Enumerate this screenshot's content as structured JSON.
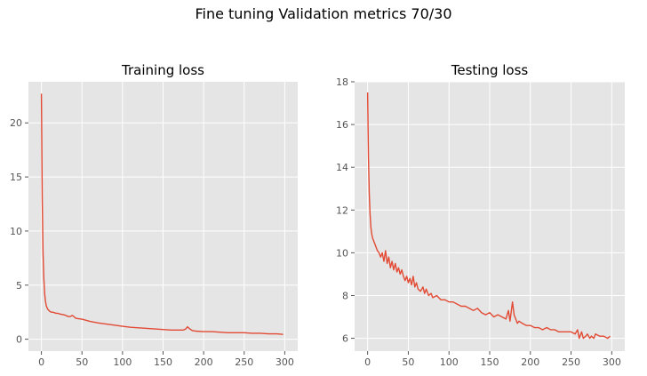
{
  "figure": {
    "title": "Fine tuning Validation metrics 70/30"
  },
  "chart_data": [
    {
      "type": "line",
      "title": "Training loss",
      "xlabel": "",
      "ylabel": "",
      "xlim": [
        -16,
        316
      ],
      "ylim": [
        -1.1,
        23.8
      ],
      "xticks": [
        0,
        50,
        100,
        150,
        200,
        250,
        300
      ],
      "yticks": [
        0,
        5,
        10,
        15,
        20
      ],
      "grid": true,
      "line_color": "#E24A33",
      "series": [
        {
          "x": [
            0,
            1,
            2,
            3,
            4,
            5,
            6,
            7,
            8,
            10,
            12,
            14,
            16,
            18,
            20,
            22,
            25,
            28,
            30,
            33,
            36,
            38,
            40,
            42,
            45,
            50,
            55,
            60,
            70,
            80,
            90,
            100,
            110,
            120,
            130,
            140,
            150,
            160,
            170,
            175,
            178,
            180,
            183,
            186,
            190,
            200,
            210,
            220,
            230,
            240,
            250,
            260,
            270,
            280,
            290,
            298
          ],
          "y": [
            22.7,
            13.0,
            8.0,
            5.6,
            4.2,
            3.5,
            3.1,
            2.9,
            2.75,
            2.6,
            2.5,
            2.5,
            2.45,
            2.4,
            2.4,
            2.35,
            2.3,
            2.25,
            2.2,
            2.1,
            2.1,
            2.2,
            2.1,
            1.95,
            1.9,
            1.85,
            1.75,
            1.65,
            1.5,
            1.4,
            1.3,
            1.2,
            1.1,
            1.05,
            1.0,
            0.95,
            0.9,
            0.85,
            0.85,
            0.85,
            0.95,
            1.15,
            0.95,
            0.8,
            0.75,
            0.7,
            0.7,
            0.65,
            0.6,
            0.6,
            0.6,
            0.55,
            0.55,
            0.5,
            0.5,
            0.45
          ]
        }
      ]
    },
    {
      "type": "line",
      "title": "Testing loss",
      "xlabel": "",
      "ylabel": "",
      "xlim": [
        -16,
        316
      ],
      "ylim": [
        5.4,
        18.0
      ],
      "xticks": [
        0,
        50,
        100,
        150,
        200,
        250,
        300
      ],
      "yticks": [
        6,
        8,
        10,
        12,
        14,
        16,
        18
      ],
      "grid": true,
      "line_color": "#E24A33",
      "series": [
        {
          "x": [
            0,
            1,
            2,
            3,
            4,
            5,
            6,
            8,
            10,
            12,
            14,
            16,
            18,
            20,
            22,
            24,
            26,
            28,
            30,
            32,
            34,
            36,
            38,
            40,
            42,
            44,
            46,
            48,
            50,
            52,
            54,
            56,
            58,
            60,
            62,
            65,
            68,
            70,
            72,
            75,
            78,
            80,
            85,
            90,
            95,
            100,
            105,
            110,
            115,
            120,
            125,
            130,
            135,
            140,
            145,
            150,
            155,
            160,
            165,
            170,
            173,
            175,
            177,
            178,
            180,
            182,
            184,
            186,
            190,
            195,
            200,
            205,
            210,
            215,
            220,
            225,
            230,
            235,
            240,
            245,
            250,
            255,
            258,
            260,
            263,
            265,
            268,
            270,
            273,
            275,
            278,
            280,
            285,
            290,
            295,
            298
          ],
          "y": [
            17.5,
            14.5,
            12.8,
            11.8,
            11.2,
            10.9,
            10.7,
            10.5,
            10.3,
            10.1,
            10.0,
            9.8,
            10.0,
            9.6,
            10.1,
            9.5,
            9.8,
            9.3,
            9.6,
            9.2,
            9.5,
            9.1,
            9.3,
            9.0,
            9.2,
            8.9,
            8.7,
            8.9,
            8.6,
            8.8,
            8.5,
            8.9,
            8.4,
            8.6,
            8.3,
            8.2,
            8.4,
            8.1,
            8.3,
            8.0,
            8.1,
            7.9,
            8.0,
            7.8,
            7.8,
            7.7,
            7.7,
            7.6,
            7.5,
            7.5,
            7.4,
            7.3,
            7.4,
            7.2,
            7.1,
            7.2,
            7.0,
            7.1,
            7.0,
            6.9,
            7.3,
            6.8,
            7.4,
            7.7,
            7.1,
            6.9,
            6.7,
            6.8,
            6.7,
            6.6,
            6.6,
            6.5,
            6.5,
            6.4,
            6.5,
            6.4,
            6.4,
            6.3,
            6.3,
            6.3,
            6.3,
            6.2,
            6.4,
            6.0,
            6.3,
            6.0,
            6.1,
            6.2,
            6.0,
            6.1,
            6.0,
            6.2,
            6.1,
            6.1,
            6.0,
            6.1
          ]
        }
      ]
    }
  ]
}
